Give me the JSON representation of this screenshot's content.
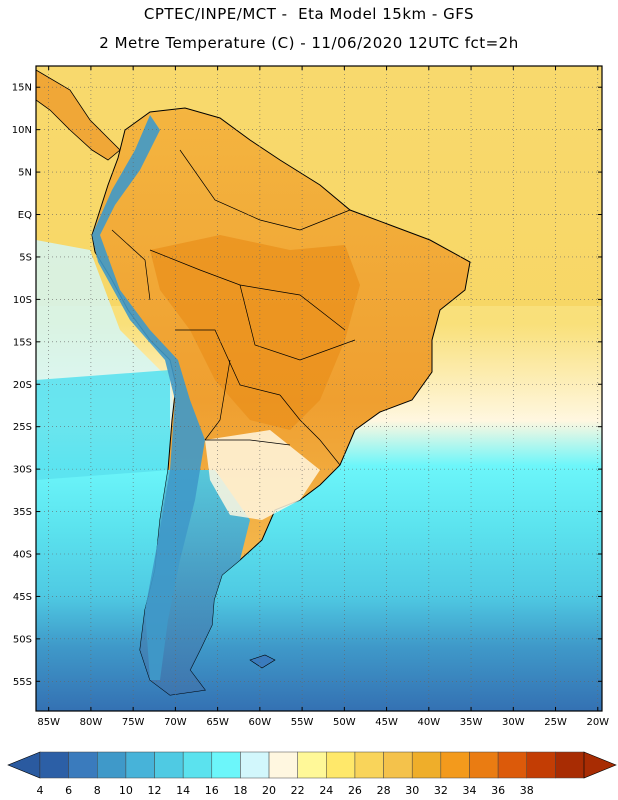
{
  "header": {
    "title_line1": "CPTEC/INPE/MCT -  Eta Model 15km - GFS",
    "title_line2": "2 Metre Temperature (C) - 11/06/2020 12UTC fct=2h"
  },
  "map": {
    "variable": "2 Metre Temperature",
    "unit": "C",
    "lat_labels": [
      "15N",
      "10N",
      "5N",
      "EQ",
      "5S",
      "10S",
      "15S",
      "20S",
      "25S",
      "30S",
      "35S",
      "40S",
      "45S",
      "50S",
      "55S"
    ],
    "lon_labels": [
      "85W",
      "80W",
      "75W",
      "70W",
      "65W",
      "60W",
      "55W",
      "50W",
      "45W",
      "40W",
      "35W",
      "30W",
      "25W",
      "20W"
    ]
  },
  "legend": {
    "ticks": [
      "4",
      "6",
      "8",
      "10",
      "12",
      "14",
      "16",
      "18",
      "20",
      "22",
      "24",
      "26",
      "28",
      "30",
      "32",
      "34",
      "36",
      "38"
    ],
    "colors": [
      "#2c5fa6",
      "#3a7bbd",
      "#3f99c9",
      "#47b3d9",
      "#4fcae3",
      "#5be2ee",
      "#6cf6fa",
      "#d2f7fc",
      "#fff7e0",
      "#fff898",
      "#ffe86a",
      "#f9d45a",
      "#f4c24b",
      "#efae2a",
      "#f39a1c",
      "#ea7c12",
      "#dc5a0a",
      "#c33d04",
      "#a82c03"
    ],
    "under_color": "#2a5aa0",
    "over_color": "#a82c03"
  },
  "colors": {
    "land_hot": "#f0a737",
    "land_warm": "#f6c44e",
    "ocean_warm": "#f9e07a",
    "ocean_cool": "#5be2ee",
    "ocean_cold": "#3a7bbd",
    "andes": "#3a7bbd"
  }
}
